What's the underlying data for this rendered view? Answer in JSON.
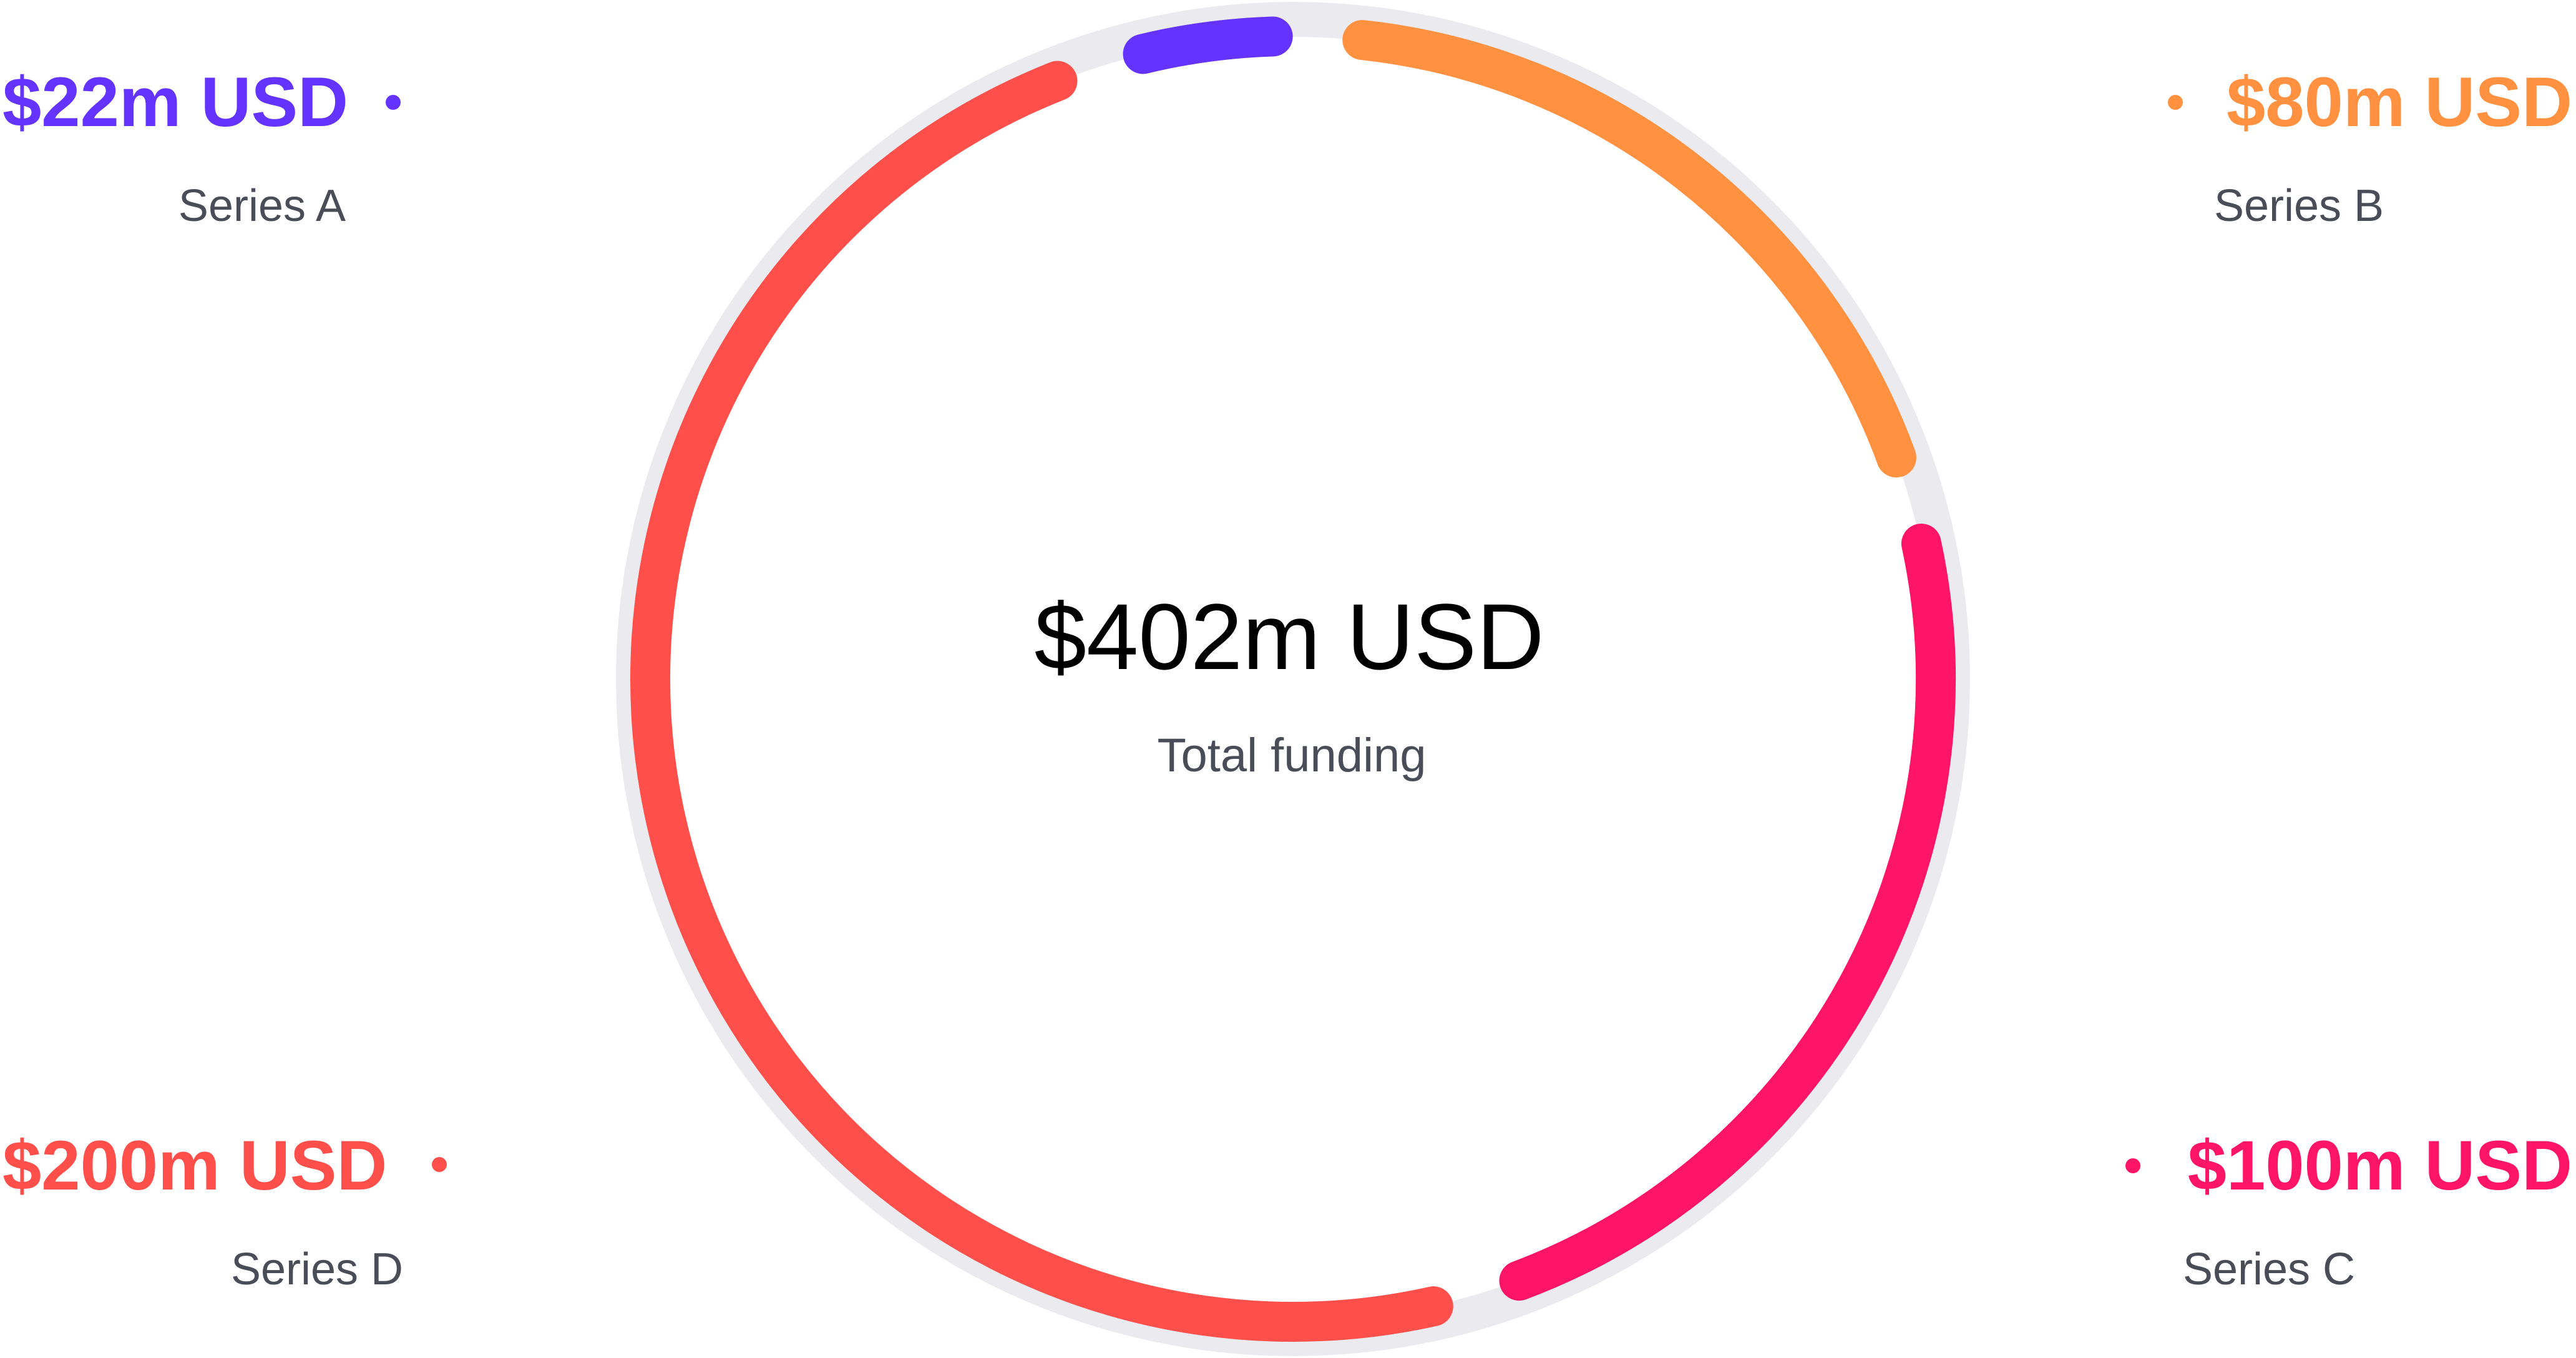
{
  "chart_data": {
    "type": "pie",
    "style": "donut",
    "center": {
      "value": "$402m USD",
      "label": "Total funding"
    },
    "track_color": "#ebebef",
    "slices": [
      {
        "name": "Series A",
        "value": 22,
        "value_label": "$22m USD",
        "color": "#6433ff",
        "position": "top-left"
      },
      {
        "name": "Series B",
        "value": 80,
        "value_label": "$80m USD",
        "color": "#ff9141",
        "position": "top-right"
      },
      {
        "name": "Series C",
        "value": 100,
        "value_label": "$100m USD",
        "color": "#ff1566",
        "position": "bottom-right"
      },
      {
        "name": "Series D",
        "value": 200,
        "value_label": "$200m USD",
        "color": "#ff4f4a",
        "position": "bottom-left"
      }
    ]
  }
}
